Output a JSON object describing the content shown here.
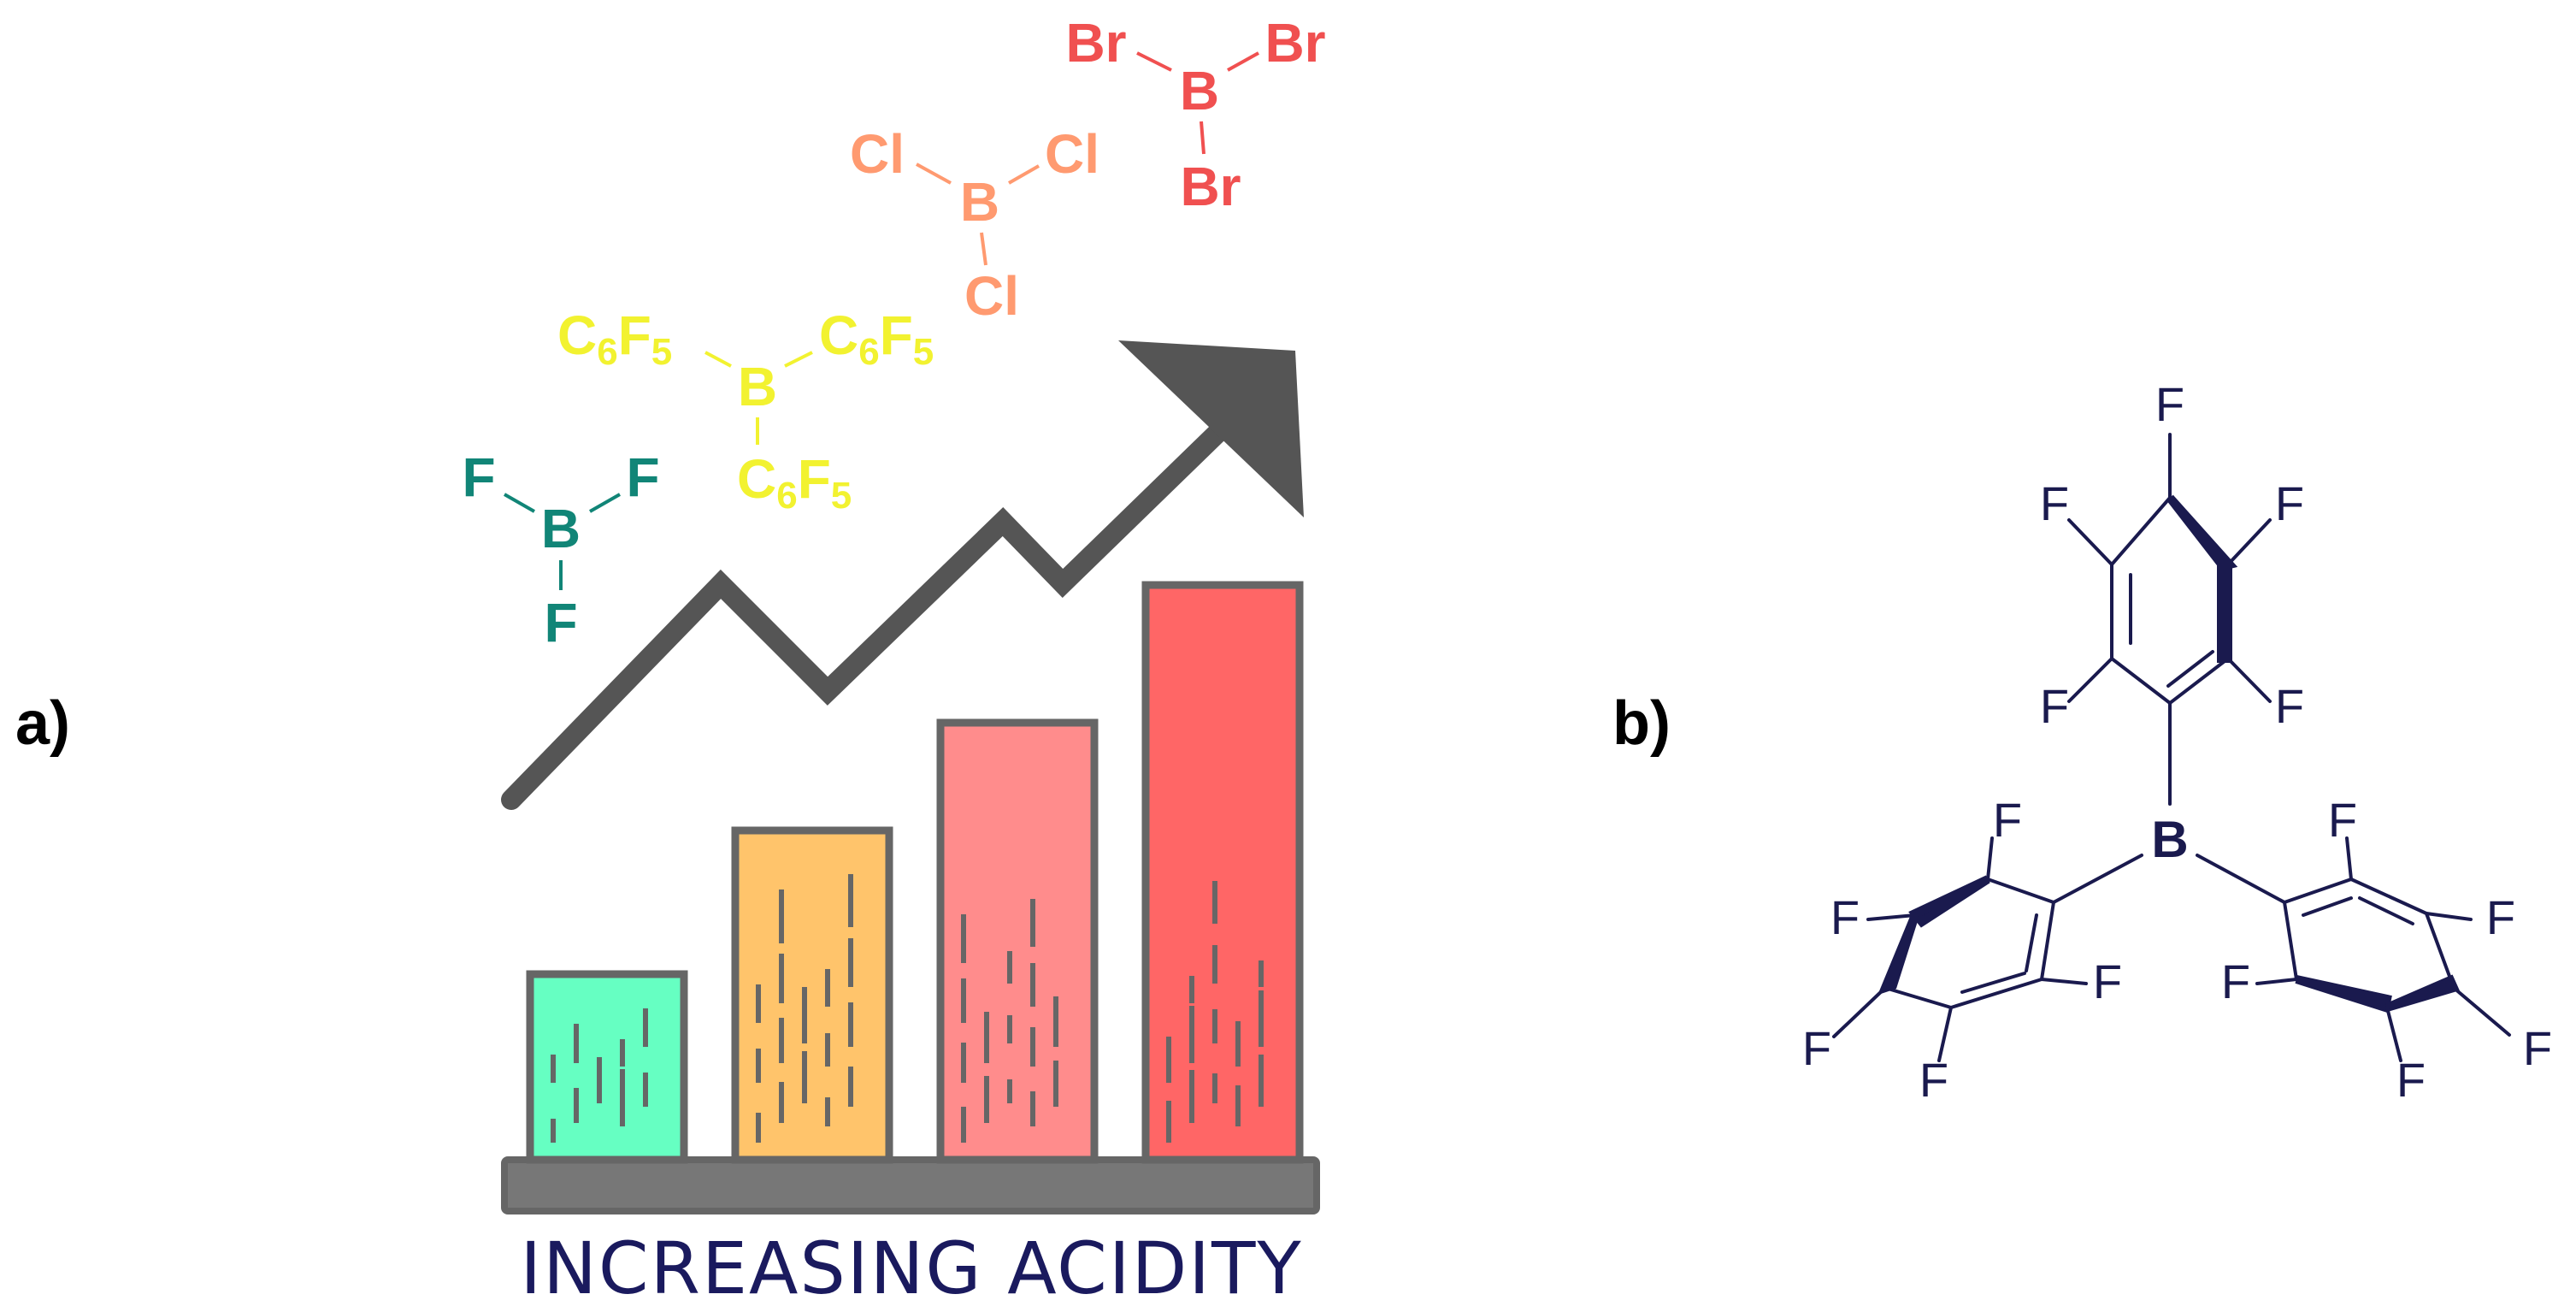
{
  "panel_a": {
    "label": "a)",
    "caption": "INCREASING ACIDITY",
    "bars": [
      {
        "name": "bar-1",
        "color": "#66ffc2",
        "level": 0.31
      },
      {
        "name": "bar-2",
        "color": "#ffc46b",
        "level": 0.55
      },
      {
        "name": "bar-3",
        "color": "#ff8c8c",
        "level": 0.73
      },
      {
        "name": "bar-4",
        "color": "#ff6666",
        "level": 0.96
      }
    ],
    "compounds": {
      "bf3": {
        "center": "B",
        "substituent": "F",
        "color": "#118577"
      },
      "bc6f5": {
        "center": "B",
        "substituent_base": "C",
        "sub1": "6",
        "mid": "F",
        "sub2": "5",
        "color": "#f2f230"
      },
      "bcl3": {
        "center": "B",
        "substituent": "Cl",
        "color": "#ff9a70"
      },
      "bbr3": {
        "center": "B",
        "substituent": "Br",
        "color": "#f05050"
      }
    },
    "colors": {
      "caption": "#1a1a5e",
      "outline": "#666666",
      "base": "#777777",
      "arrow": "#555555"
    }
  },
  "panel_b": {
    "label": "b)",
    "center": "B",
    "substituent": "F",
    "color": "#1a1a4e"
  }
}
